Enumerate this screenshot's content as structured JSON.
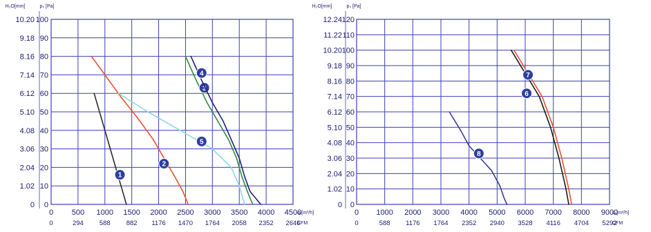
{
  "chart_data": [
    {
      "type": "line",
      "yaxis_left_title": "H₂O[mm]",
      "yaxis_right_title": "pₛ [Pa]",
      "y_pa_ticks": [
        "0",
        "10",
        "20",
        "30",
        "40",
        "50",
        "60",
        "70",
        "80",
        "90",
        "100"
      ],
      "y_mm_ticks": [
        "0",
        "1.02",
        "2.04",
        "3.06",
        "4.08",
        "5.10",
        "6.12",
        "7.14",
        "8.16",
        "9.18",
        "10.20"
      ],
      "x_m3h_ticks": [
        "0",
        "500",
        "1000",
        "1500",
        "2000",
        "2500",
        "3000",
        "3500",
        "4000",
        "4500"
      ],
      "x_cfm_ticks": [
        "0",
        "294",
        "588",
        "882",
        "1176",
        "1470",
        "1764",
        "2058",
        "2352",
        "2646"
      ],
      "x_m3h_unit": "qᵥ[m³/h]",
      "x_cfm_unit": "CFM",
      "xlim": [
        0,
        4500
      ],
      "ylim": [
        0,
        100
      ],
      "grid": true,
      "series": [
        {
          "name": "1",
          "color": "#2b2b2b",
          "points": [
            [
              800,
              60
            ],
            [
              950,
              45
            ],
            [
              1100,
              30
            ],
            [
              1200,
              20
            ],
            [
              1300,
              10
            ],
            [
              1400,
              0
            ]
          ],
          "label_at": [
            1280,
            16
          ]
        },
        {
          "name": "2",
          "color": "#e8502a",
          "points": [
            [
              750,
              80
            ],
            [
              1000,
              70
            ],
            [
              1300,
              58
            ],
            [
              1600,
              47
            ],
            [
              1900,
              35
            ],
            [
              2100,
              25
            ],
            [
              2300,
              15
            ],
            [
              2450,
              7
            ],
            [
              2550,
              0
            ]
          ],
          "label_at": [
            2100,
            22
          ]
        },
        {
          "name": "3",
          "color": "#2e8a3a",
          "points": [
            [
              2500,
              80
            ],
            [
              2700,
              67
            ],
            [
              2900,
              55
            ],
            [
              3100,
              45
            ],
            [
              3300,
              35
            ],
            [
              3450,
              25
            ],
            [
              3550,
              15
            ],
            [
              3650,
              7
            ],
            [
              3750,
              0
            ]
          ],
          "label_at": [
            2850,
            63
          ]
        },
        {
          "name": "4",
          "color": "#1e1e7a",
          "points": [
            [
              2600,
              80
            ],
            [
              2800,
              67
            ],
            [
              3000,
              55
            ],
            [
              3200,
              45
            ],
            [
              3350,
              35
            ],
            [
              3500,
              25
            ],
            [
              3600,
              15
            ],
            [
              3700,
              7
            ],
            [
              3900,
              0
            ]
          ],
          "label_at": [
            2800,
            71
          ]
        },
        {
          "name": "5",
          "color": "#8fd6e6",
          "points": [
            [
              1250,
              60
            ],
            [
              1800,
              50
            ],
            [
              2400,
              40
            ],
            [
              3000,
              30
            ],
            [
              3350,
              20
            ],
            [
              3500,
              10
            ],
            [
              3600,
              0
            ]
          ],
          "label_at": [
            2800,
            34
          ]
        }
      ]
    },
    {
      "type": "line",
      "yaxis_left_title": "H₂O[mm]",
      "yaxis_right_title": "pₛ [Pa]",
      "y_pa_ticks": [
        "0",
        "10",
        "20",
        "30",
        "40",
        "50",
        "60",
        "70",
        "80",
        "90",
        "100",
        "110",
        "120"
      ],
      "y_mm_ticks": [
        "0",
        "1.02",
        "2.04",
        "3.06",
        "4.08",
        "5.10",
        "6.12",
        "7.14",
        "8.16",
        "9.18",
        "10.20",
        "11.22",
        "12.24"
      ],
      "x_m3h_ticks": [
        "0",
        "1000",
        "2000",
        "3000",
        "4000",
        "5000",
        "6000",
        "7000",
        "8000",
        "9000"
      ],
      "x_cfm_ticks": [
        "0",
        "588",
        "1176",
        "1764",
        "2352",
        "2940",
        "3528",
        "4116",
        "4704",
        "5292"
      ],
      "x_m3h_unit": "qᵥ[m³/h]",
      "x_cfm_unit": "CFM",
      "xlim": [
        0,
        9000
      ],
      "ylim": [
        0,
        120
      ],
      "grid": true,
      "series": [
        {
          "name": "6",
          "color": "#1a1a1a",
          "points": [
            [
              5500,
              100
            ],
            [
              6000,
              85
            ],
            [
              6500,
              70
            ],
            [
              6900,
              50
            ],
            [
              7200,
              30
            ],
            [
              7450,
              10
            ],
            [
              7550,
              0
            ]
          ],
          "label_at": [
            6050,
            72
          ]
        },
        {
          "name": "7",
          "color": "#e8502a",
          "points": [
            [
              5600,
              100
            ],
            [
              6100,
              85
            ],
            [
              6600,
              70
            ],
            [
              7000,
              50
            ],
            [
              7300,
              30
            ],
            [
              7550,
              10
            ],
            [
              7650,
              0
            ]
          ],
          "label_at": [
            6100,
            84
          ]
        },
        {
          "name": "8",
          "color": "#3a3a9a",
          "points": [
            [
              3300,
              60
            ],
            [
              3700,
              48
            ],
            [
              4000,
              38
            ],
            [
              4400,
              30
            ],
            [
              4800,
              22
            ],
            [
              5100,
              12
            ],
            [
              5250,
              4
            ],
            [
              5350,
              0
            ]
          ],
          "label_at": [
            4350,
            33
          ]
        }
      ]
    }
  ]
}
